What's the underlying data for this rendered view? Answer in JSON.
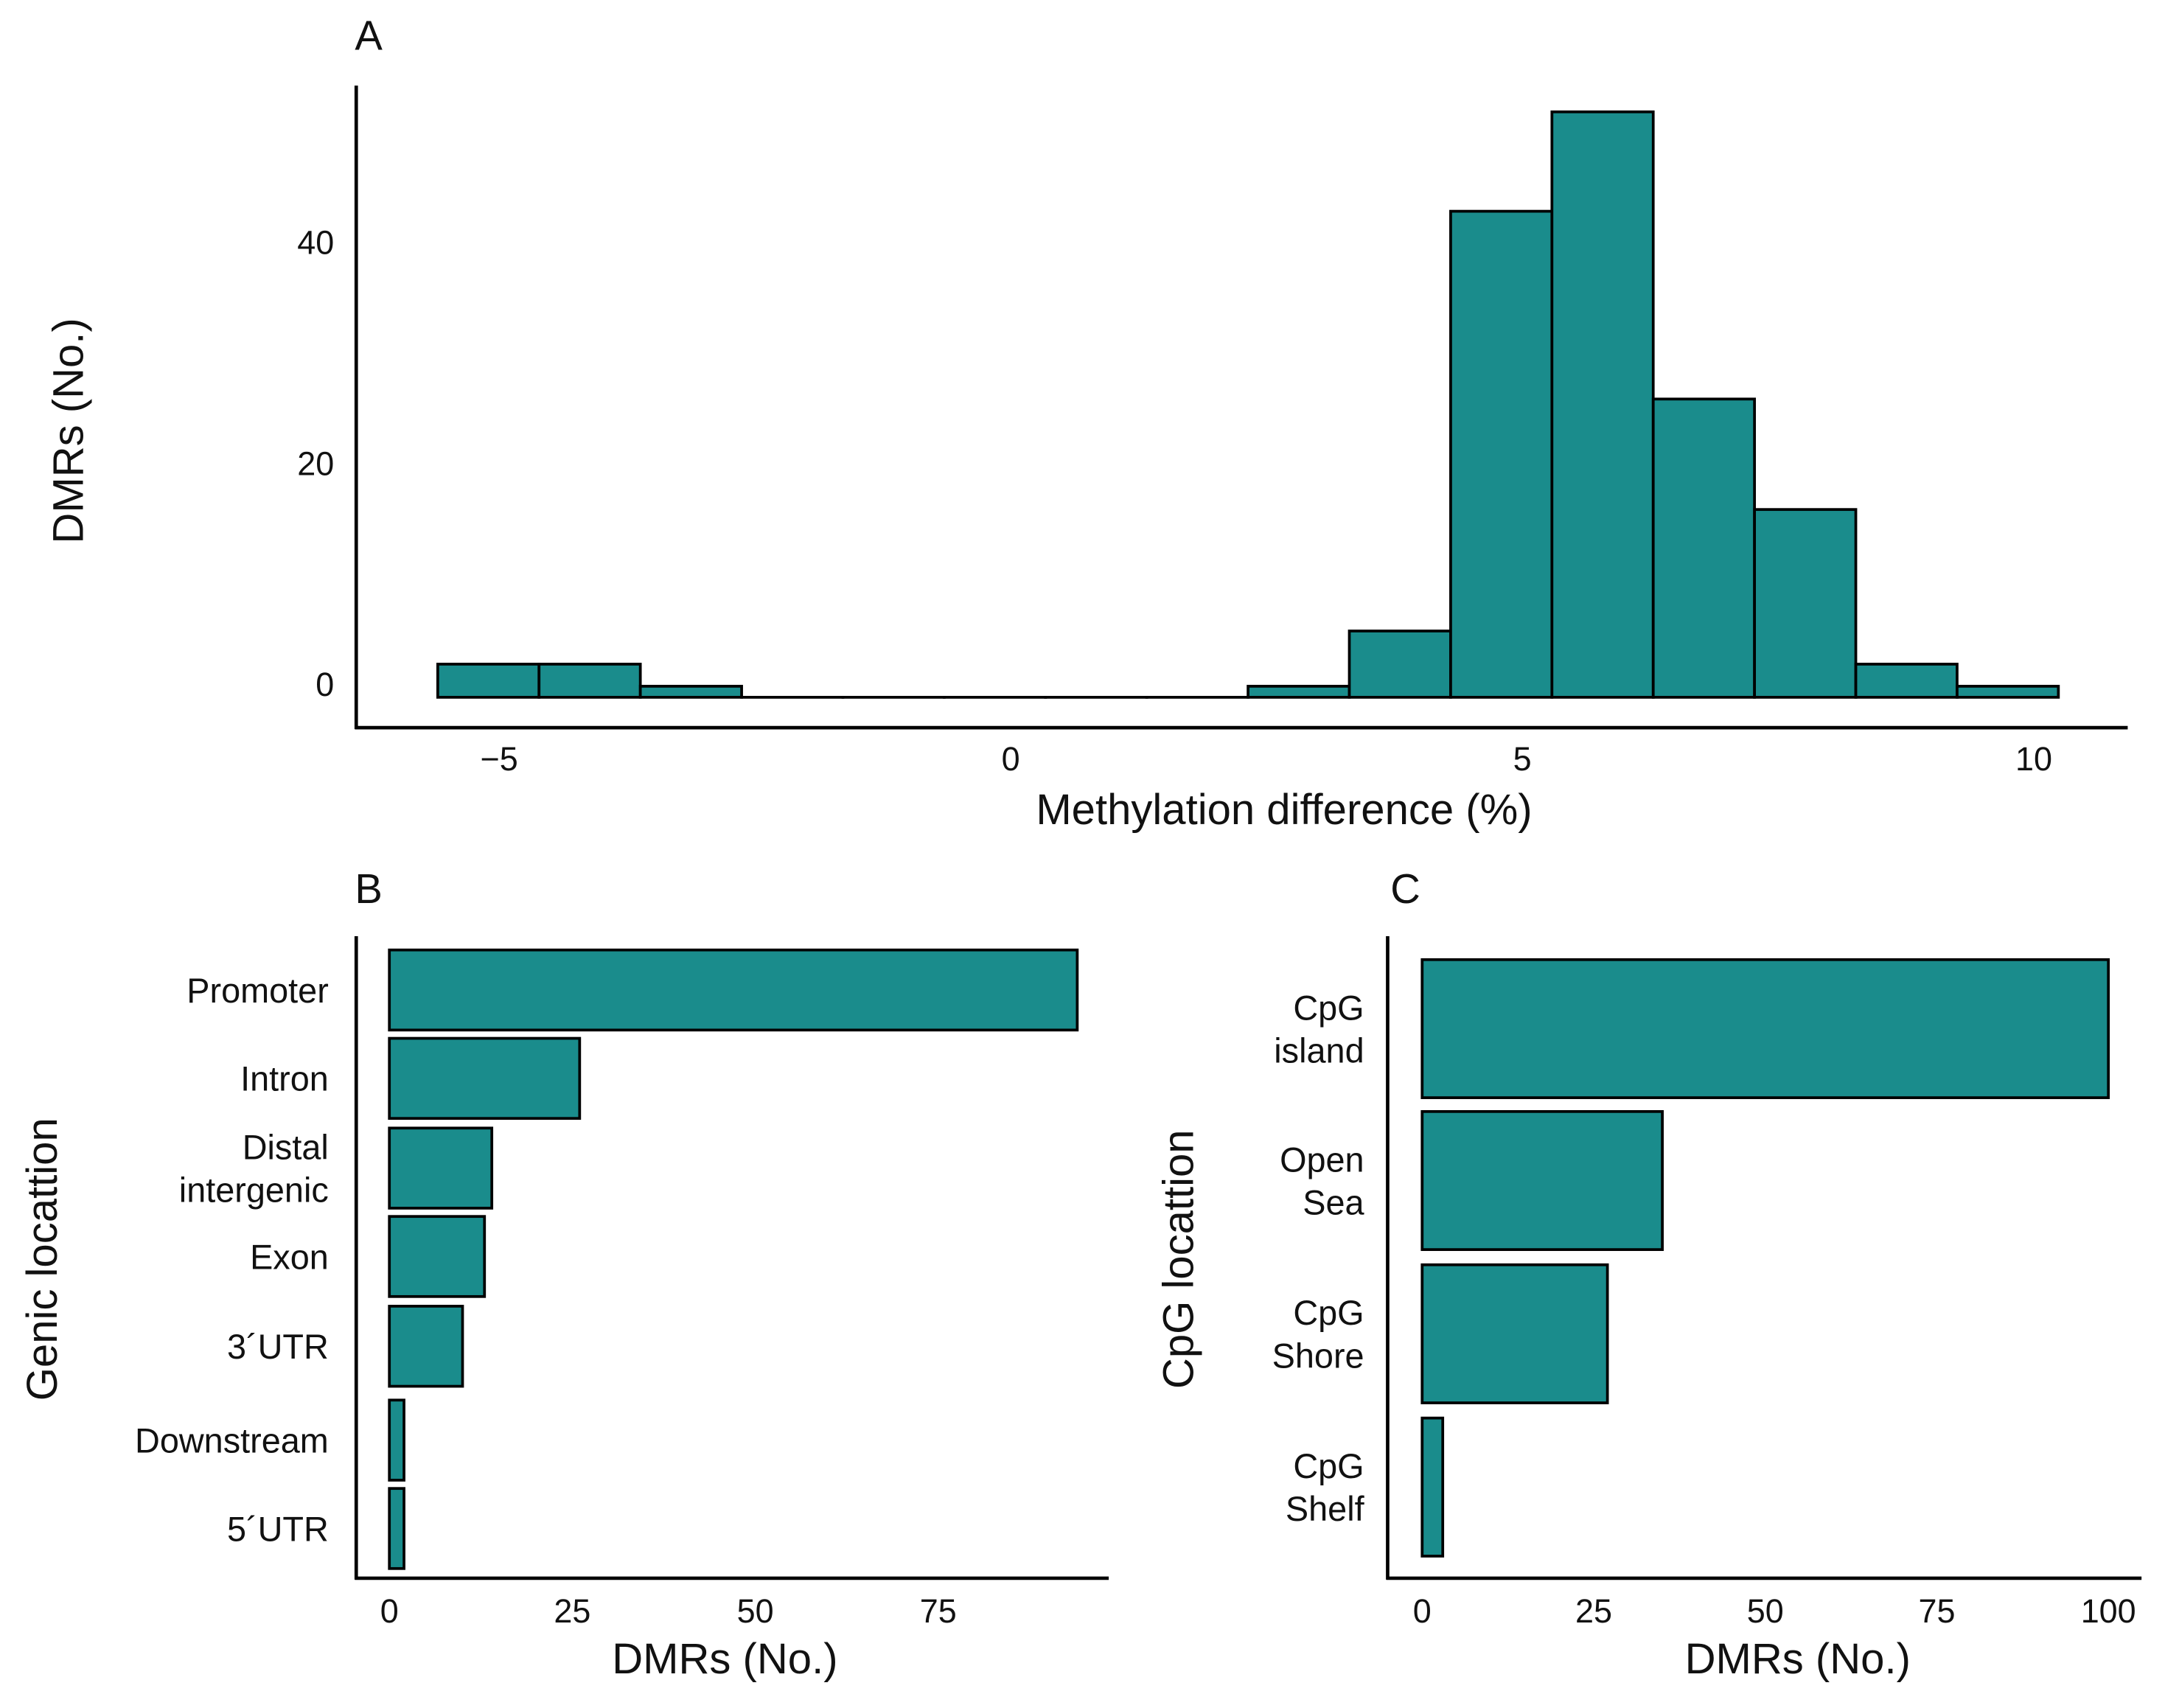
{
  "chart_data": [
    {
      "panel": "A",
      "type": "bar",
      "subtype": "histogram",
      "xlabel": "Methylation difference (%)",
      "ylabel": "DMRs (No.)",
      "xticks": [
        -5,
        0,
        5,
        10
      ],
      "xtick_labels": [
        "−5",
        "0",
        "5",
        "10"
      ],
      "yticks": [
        0,
        20,
        40
      ],
      "yticks_labels": [
        "0",
        "20",
        "40"
      ],
      "xlim": [
        -6.3,
        11.1
      ],
      "ylim": [
        -3,
        56
      ],
      "bin_start": -5.6,
      "bin_width": 0.99,
      "values": [
        3,
        3,
        1,
        0,
        0,
        0,
        0,
        0,
        1,
        6,
        44,
        53,
        27,
        17,
        3,
        1
      ],
      "color": "#1a8c8c"
    },
    {
      "panel": "B",
      "type": "bar",
      "orientation": "horizontal",
      "ylabel": "Genic locattion",
      "xlabel": "DMRs (No.)",
      "categories": [
        [
          "Promoter"
        ],
        [
          "Intron"
        ],
        [
          "Distal",
          "intergenic"
        ],
        [
          "Exon"
        ],
        [
          "3´UTR"
        ],
        [
          "Downstream"
        ],
        [
          "5´UTR"
        ]
      ],
      "values": [
        94,
        26,
        14,
        13,
        10,
        2,
        2
      ],
      "xticks": [
        0,
        25,
        50,
        75
      ],
      "xtick_labels": [
        "0",
        "25",
        "50",
        "75"
      ],
      "xlim": [
        -5,
        98
      ],
      "color": "#1a8c8c"
    },
    {
      "panel": "C",
      "type": "bar",
      "orientation": "horizontal",
      "ylabel": "CpG locattion",
      "xlabel": "DMRs (No.)",
      "categories": [
        [
          "CpG",
          "island"
        ],
        [
          "Open",
          "Sea"
        ],
        [
          "CpG",
          "Shore"
        ],
        [
          "CpG",
          "Shelf"
        ]
      ],
      "values": [
        100,
        35,
        27,
        3
      ],
      "xticks": [
        0,
        25,
        50,
        75,
        100
      ],
      "xtick_labels": [
        "0",
        "25",
        "50",
        "75",
        "100"
      ],
      "xlim": [
        -5,
        105
      ],
      "color": "#1a8c8c"
    }
  ]
}
